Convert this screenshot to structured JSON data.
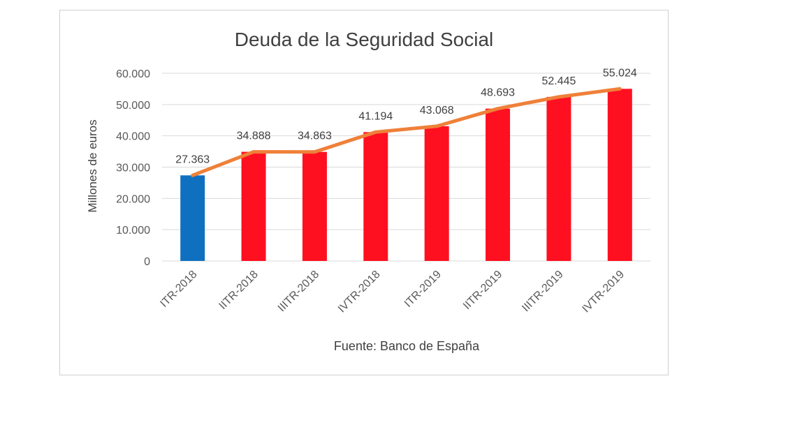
{
  "chart_data": {
    "type": "bar",
    "title": "Deuda de la Seguridad Social",
    "ylabel": "Millones de euros",
    "xlabel": "",
    "source": "Fuente: Banco de España",
    "categories": [
      "ITR-2018",
      "IITR-2018",
      "IIITR-2018",
      "IVTR-2018",
      "ITR-2019",
      "IITR-2019",
      "IIITR-2019",
      "IVTR-2019"
    ],
    "values": [
      27363,
      34888,
      34863,
      41194,
      43068,
      48693,
      52445,
      55024
    ],
    "value_labels": [
      "27.363",
      "34.888",
      "34.863",
      "41.194",
      "43.068",
      "48.693",
      "52.445",
      "55.024"
    ],
    "ylim": [
      0,
      60000
    ],
    "yticks": [
      0,
      10000,
      20000,
      30000,
      40000,
      50000,
      60000
    ],
    "ytick_labels": [
      "0",
      "10.000",
      "20.000",
      "30.000",
      "40.000",
      "50.000",
      "60.000"
    ],
    "grid": true,
    "bar_colors": [
      "#1070c0",
      "#ff1020",
      "#ff1020",
      "#ff1020",
      "#ff1020",
      "#ff1020",
      "#ff1020",
      "#ff1020"
    ],
    "line_color": "#ef8039",
    "overlay": "line connecting bar values"
  }
}
